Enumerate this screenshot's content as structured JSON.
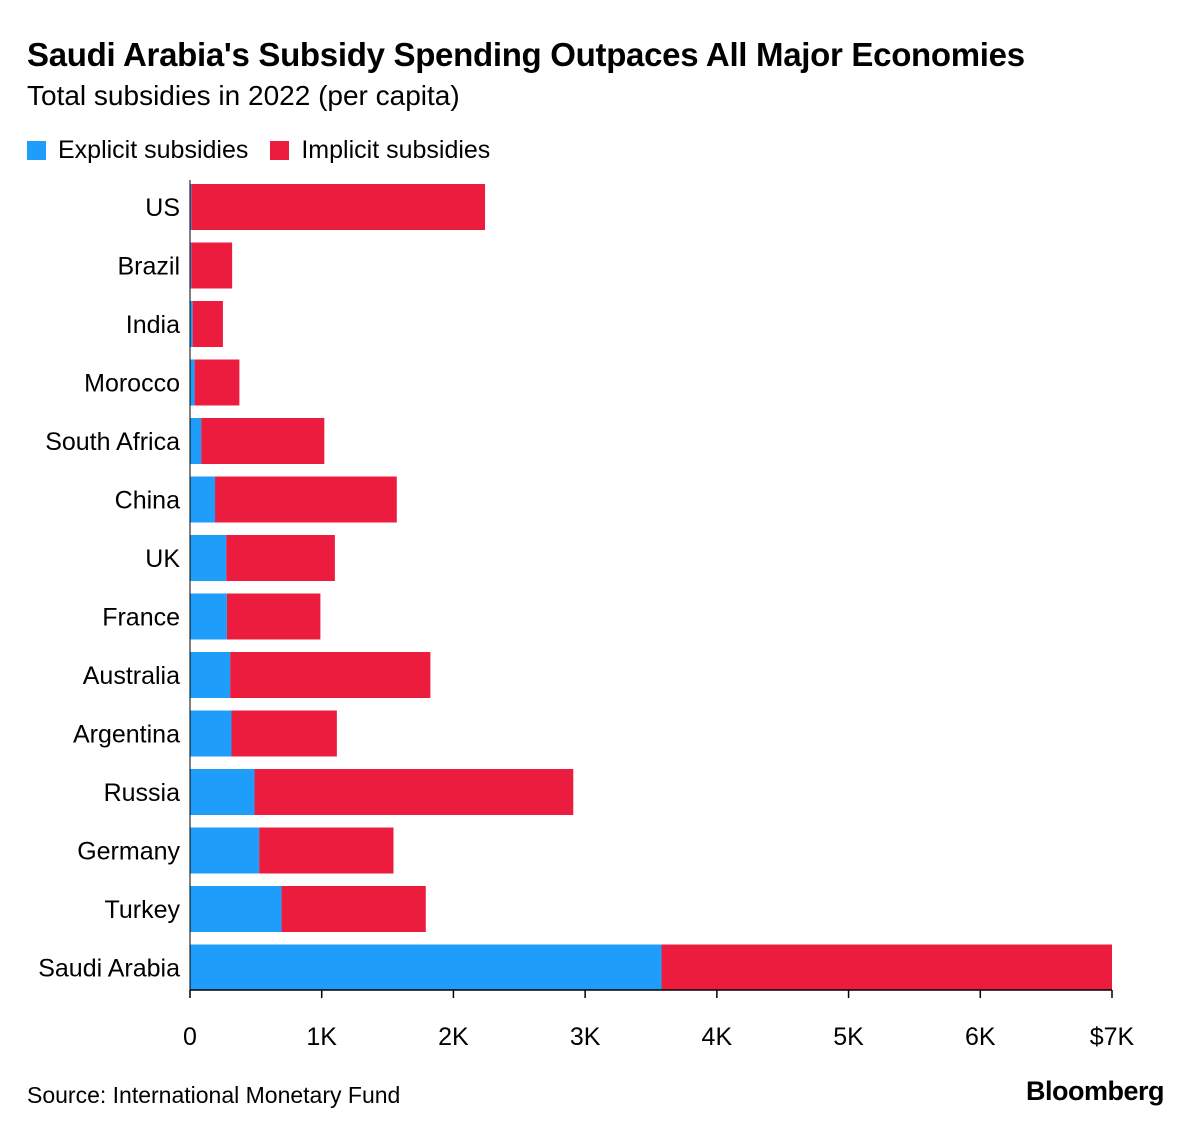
{
  "colors": {
    "explicit": "#1e9dfa",
    "implicit": "#ec1c3f",
    "axis": "#000000"
  },
  "chart_data": {
    "type": "bar",
    "orientation": "horizontal",
    "stacked": true,
    "title": "Saudi Arabia's Subsidy Spending Outpaces All Major Economies",
    "subtitle": "Total subsidies in 2022 (per capita)",
    "categories": [
      "US",
      "Brazil",
      "India",
      "Morocco",
      "South Africa",
      "China",
      "UK",
      "France",
      "Australia",
      "Argentina",
      "Russia",
      "Germany",
      "Turkey",
      "Saudi Arabia"
    ],
    "series": [
      {
        "name": "Explicit subsidies",
        "values": [
          10,
          10,
          20,
          35,
          85,
          190,
          275,
          280,
          305,
          315,
          490,
          525,
          695,
          3580
        ]
      },
      {
        "name": "Implicit subsidies",
        "values": [
          2230,
          310,
          230,
          340,
          935,
          1380,
          825,
          710,
          1520,
          800,
          2420,
          1020,
          1095,
          3420
        ]
      }
    ],
    "xlim": [
      0,
      7000
    ],
    "xticks": [
      0,
      1000,
      2000,
      3000,
      4000,
      5000,
      6000,
      7000
    ],
    "xtick_labels": [
      "0",
      "1K",
      "2K",
      "3K",
      "4K",
      "5K",
      "6K",
      "$7K"
    ],
    "grid": false,
    "legend_position": "top-left"
  },
  "source": "Source: International Monetary Fund",
  "brand": "Bloomberg"
}
